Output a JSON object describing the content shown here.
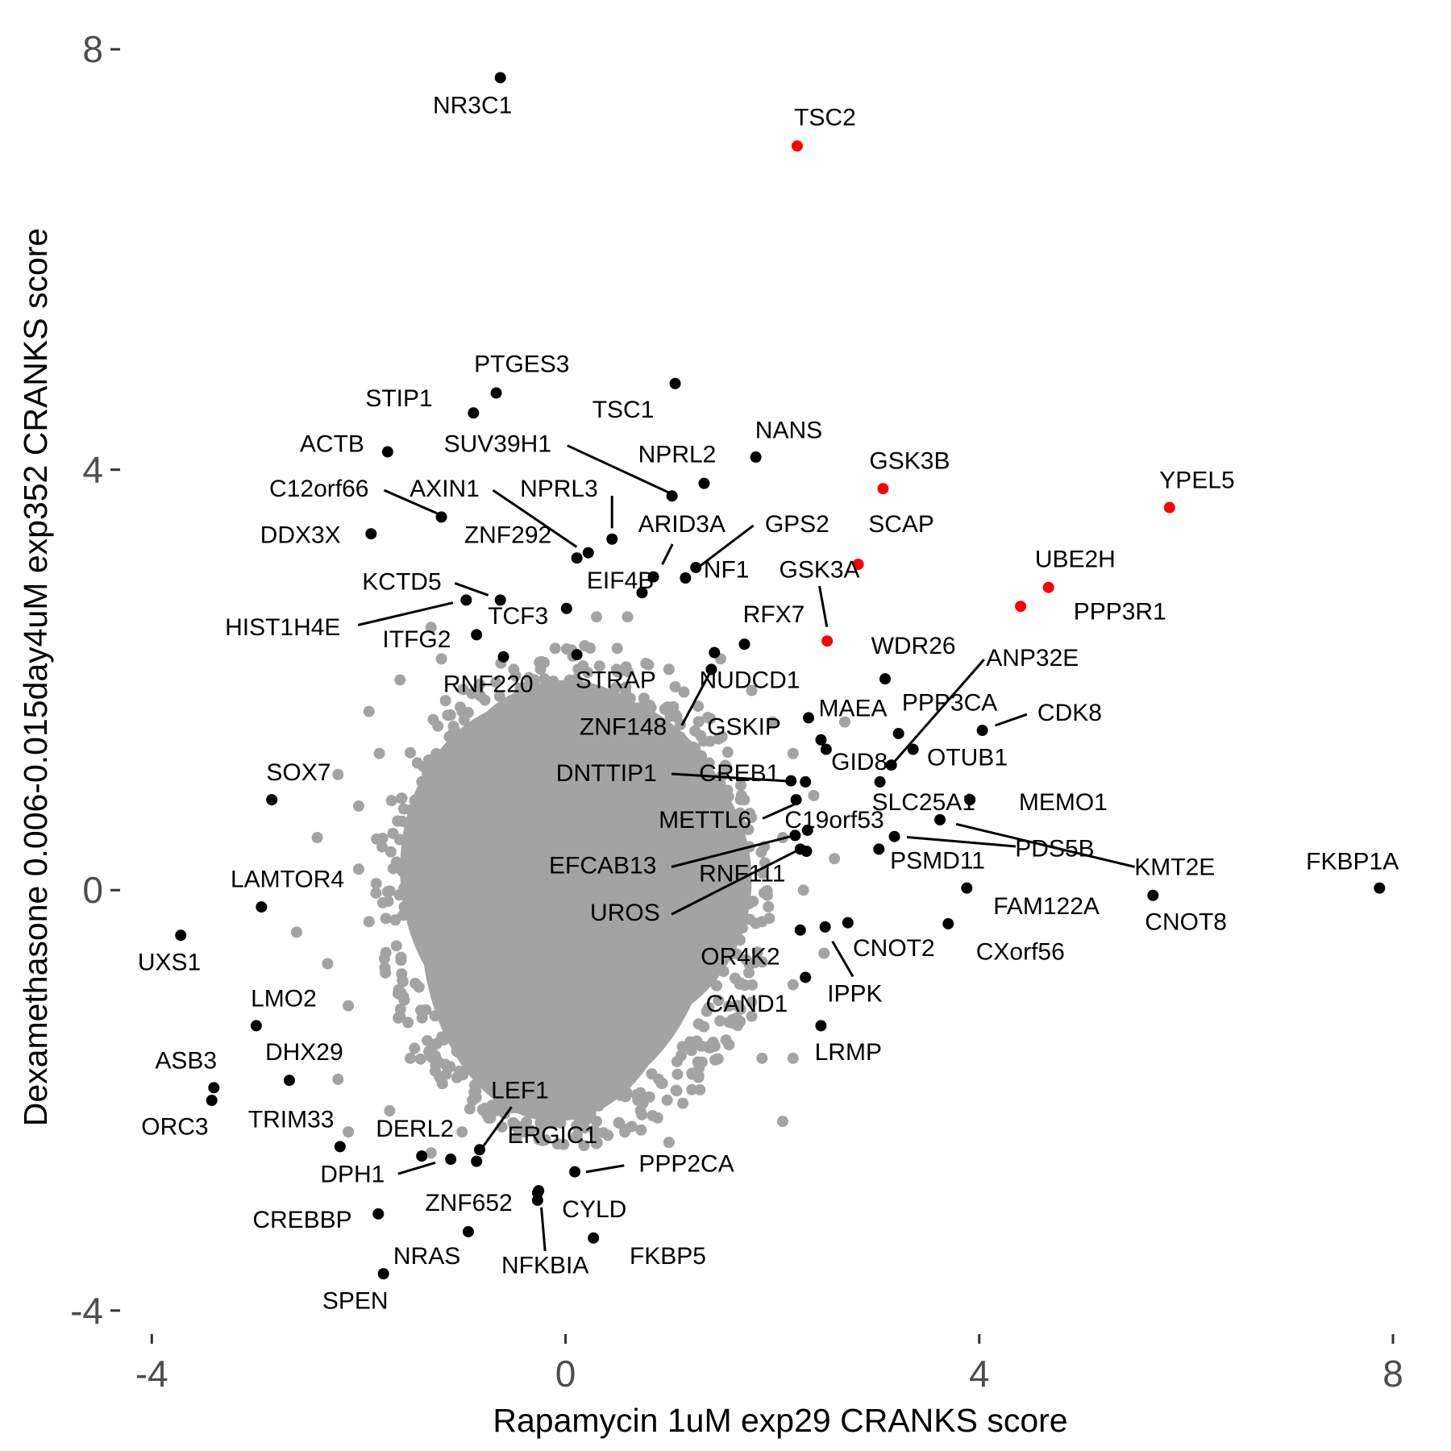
{
  "chart_data": {
    "type": "scatter",
    "xlabel": "Rapamycin 1uM exp29 CRANKS score",
    "ylabel": "Dexamethasone 0.006-0.015day4uM exp352 CRANKS score",
    "xlim": [
      -4.3,
      8.3
    ],
    "ylim": [
      -4.2,
      8.2
    ],
    "xticks": [
      -4,
      0,
      4,
      8
    ],
    "yticks": [
      -4,
      0,
      4,
      8
    ],
    "grid": false,
    "colors": {
      "highlight": "#ff0000",
      "labeled": "#000000",
      "background": "#a3a3a3"
    },
    "points": [
      {
        "label": "NR3C1",
        "x": -0.63,
        "y": 7.73,
        "highlight": false
      },
      {
        "label": "TSC2",
        "x": 2.24,
        "y": 7.08,
        "highlight": true
      },
      {
        "label": "PTGES3",
        "x": -0.67,
        "y": 4.73,
        "highlight": false
      },
      {
        "label": "STIP1",
        "x": -0.89,
        "y": 4.54,
        "highlight": false
      },
      {
        "label": "TSC1",
        "x": 1.06,
        "y": 4.82,
        "highlight": false
      },
      {
        "label": "ACTB",
        "x": -1.72,
        "y": 4.17,
        "highlight": false
      },
      {
        "label": "SUV39H1",
        "x": 1.03,
        "y": 3.75,
        "highlight": false
      },
      {
        "label": "NANS",
        "x": 1.84,
        "y": 4.12,
        "highlight": false
      },
      {
        "label": "NPRL2",
        "x": 1.34,
        "y": 3.87,
        "highlight": false
      },
      {
        "label": "GSK3B",
        "x": 3.07,
        "y": 3.82,
        "highlight": true
      },
      {
        "label": "YPEL5",
        "x": 5.84,
        "y": 3.64,
        "highlight": true
      },
      {
        "label": "C12orf66",
        "x": -1.2,
        "y": 3.55,
        "highlight": false
      },
      {
        "label": "AXIN1",
        "x": 0.11,
        "y": 3.16,
        "highlight": false
      },
      {
        "label": "NPRL3",
        "x": 0.45,
        "y": 3.34,
        "highlight": false
      },
      {
        "label": "DDX3X",
        "x": -1.88,
        "y": 3.39,
        "highlight": false
      },
      {
        "label": "ZNF292",
        "x": 0.22,
        "y": 3.21,
        "highlight": false
      },
      {
        "label": "ARID3A",
        "x": 0.85,
        "y": 2.98,
        "highlight": false
      },
      {
        "label": "GPS2",
        "x": 1.26,
        "y": 3.07,
        "highlight": false
      },
      {
        "label": "NF1",
        "x": 1.16,
        "y": 2.97,
        "highlight": false
      },
      {
        "label": "EIF4B",
        "x": 0.74,
        "y": 2.83,
        "highlight": false
      },
      {
        "label": "SCAP",
        "x": 2.83,
        "y": 3.1,
        "highlight": true
      },
      {
        "label": "GSK3A",
        "x": 2.53,
        "y": 2.37,
        "highlight": true
      },
      {
        "label": "UBE2H",
        "x": 4.67,
        "y": 2.88,
        "highlight": true
      },
      {
        "label": "PPP3R1",
        "x": 4.4,
        "y": 2.7,
        "highlight": true
      },
      {
        "label": "KCTD5",
        "x": -0.63,
        "y": 2.76,
        "highlight": false
      },
      {
        "label": "HIST1H4E",
        "x": -0.96,
        "y": 2.76,
        "highlight": false
      },
      {
        "label": "TCF3",
        "x": 0.01,
        "y": 2.68,
        "highlight": false
      },
      {
        "label": "ITFG2",
        "x": -0.86,
        "y": 2.43,
        "highlight": false
      },
      {
        "label": "RFX7",
        "x": 1.73,
        "y": 2.34,
        "highlight": false
      },
      {
        "label": "WDR26",
        "x": 3.09,
        "y": 2.01,
        "highlight": false
      },
      {
        "label": "ANP32E",
        "x": 3.15,
        "y": 1.19,
        "highlight": false
      },
      {
        "label": "CDK8",
        "x": 4.03,
        "y": 1.52,
        "highlight": false
      },
      {
        "label": "RNF220",
        "x": -0.6,
        "y": 2.22,
        "highlight": false
      },
      {
        "label": "STRAP",
        "x": 0.11,
        "y": 2.24,
        "highlight": false
      },
      {
        "label": "NUDCD1",
        "x": 1.44,
        "y": 2.26,
        "highlight": false
      },
      {
        "label": "ZNF148",
        "x": 1.41,
        "y": 2.1,
        "highlight": false
      },
      {
        "label": "MAEA",
        "x": 2.35,
        "y": 1.64,
        "highlight": false
      },
      {
        "label": "PPP3CA",
        "x": 3.22,
        "y": 1.49,
        "highlight": false
      },
      {
        "label": "GSKIP",
        "x": 2.47,
        "y": 1.43,
        "highlight": false
      },
      {
        "label": "GID8",
        "x": 2.52,
        "y": 1.34,
        "highlight": false
      },
      {
        "label": "OTUB1",
        "x": 3.36,
        "y": 1.34,
        "highlight": false
      },
      {
        "label": "DNTTIP1",
        "x": 2.18,
        "y": 1.04,
        "highlight": false
      },
      {
        "label": "CREB1",
        "x": 2.32,
        "y": 1.03,
        "highlight": false
      },
      {
        "label": "SLC25A1",
        "x": 3.04,
        "y": 1.03,
        "highlight": false
      },
      {
        "label": "MEMO1",
        "x": 3.91,
        "y": 0.86,
        "highlight": false
      },
      {
        "label": "METTL6",
        "x": 2.23,
        "y": 0.86,
        "highlight": false
      },
      {
        "label": "C19orf53",
        "x": 2.34,
        "y": 0.57,
        "highlight": false
      },
      {
        "label": "KMT2E",
        "x": 3.62,
        "y": 0.67,
        "highlight": false
      },
      {
        "label": "PDS5B",
        "x": 3.18,
        "y": 0.51,
        "highlight": false
      },
      {
        "label": "PSMD11",
        "x": 3.03,
        "y": 0.39,
        "highlight": false
      },
      {
        "label": "EFCAB13",
        "x": 2.22,
        "y": 0.52,
        "highlight": false
      },
      {
        "label": "RNF111",
        "x": 2.33,
        "y": 0.37,
        "highlight": false
      },
      {
        "label": "UROS",
        "x": 2.27,
        "y": 0.39,
        "highlight": false
      },
      {
        "label": "FKBP1A",
        "x": 7.87,
        "y": 0.02,
        "highlight": false
      },
      {
        "label": "CNOT8",
        "x": 5.68,
        "y": -0.05,
        "highlight": false
      },
      {
        "label": "FAM122A",
        "x": 3.88,
        "y": 0.02,
        "highlight": false
      },
      {
        "label": "CXorf56",
        "x": 3.7,
        "y": -0.32,
        "highlight": false
      },
      {
        "label": "CNOT2",
        "x": 2.73,
        "y": -0.31,
        "highlight": false
      },
      {
        "label": "IPPK",
        "x": 2.51,
        "y": -0.35,
        "highlight": false
      },
      {
        "label": "OR4K2",
        "x": 2.27,
        "y": -0.38,
        "highlight": false
      },
      {
        "label": "CAND1",
        "x": 2.32,
        "y": -0.83,
        "highlight": false
      },
      {
        "label": "LRMP",
        "x": 2.47,
        "y": -1.29,
        "highlight": false
      },
      {
        "label": "SOX7",
        "x": -2.84,
        "y": 0.86,
        "highlight": false
      },
      {
        "label": "LAMTOR4",
        "x": -2.94,
        "y": -0.16,
        "highlight": false
      },
      {
        "label": "UXS1",
        "x": -3.72,
        "y": -0.43,
        "highlight": false
      },
      {
        "label": "LMO2",
        "x": -2.99,
        "y": -1.29,
        "highlight": false
      },
      {
        "label": "DHX29",
        "x": -2.67,
        "y": -1.81,
        "highlight": false
      },
      {
        "label": "ASB3",
        "x": -3.4,
        "y": -1.88,
        "highlight": false
      },
      {
        "label": "ORC3",
        "x": -3.42,
        "y": -2.0,
        "highlight": false
      },
      {
        "label": "TRIM33",
        "x": -2.18,
        "y": -2.44,
        "highlight": false
      },
      {
        "label": "DERL2",
        "x": -1.11,
        "y": -2.56,
        "highlight": false
      },
      {
        "label": "LEF1",
        "x": -0.83,
        "y": -2.47,
        "highlight": false
      },
      {
        "label": "ERGIC1",
        "x": -0.86,
        "y": -2.58,
        "highlight": false
      },
      {
        "label": "DPH1",
        "x": -1.39,
        "y": -2.53,
        "highlight": false
      },
      {
        "label": "PPP2CA",
        "x": 0.09,
        "y": -2.68,
        "highlight": false
      },
      {
        "label": "CREBBP",
        "x": -1.81,
        "y": -3.08,
        "highlight": false
      },
      {
        "label": "ZNF652",
        "x": -0.27,
        "y": -2.88,
        "highlight": false
      },
      {
        "label": "CYLD",
        "x": -0.27,
        "y": -2.95,
        "highlight": false
      },
      {
        "label": "NFKBIA",
        "x": -0.26,
        "y": -2.86,
        "highlight": false
      },
      {
        "label": "NRAS",
        "x": -0.94,
        "y": -3.25,
        "highlight": false
      },
      {
        "label": "FKBP5",
        "x": 0.27,
        "y": -3.31,
        "highlight": false
      },
      {
        "label": "SPEN",
        "x": -1.76,
        "y": -3.65,
        "highlight": false
      }
    ],
    "background_points": [
      [
        -1.6,
        2.0
      ],
      [
        -1.9,
        1.7
      ],
      [
        -1.8,
        1.3
      ],
      [
        -2.2,
        1.1
      ],
      [
        -2.4,
        0.5
      ],
      [
        -2.6,
        -0.4
      ],
      [
        -2.3,
        -0.7
      ],
      [
        -2.1,
        -1.1
      ],
      [
        -2.2,
        -1.8
      ],
      [
        -2.1,
        -2.3
      ],
      [
        -1.7,
        -2.1
      ],
      [
        -1.5,
        -1.6
      ],
      [
        -1.3,
        -2.5
      ],
      [
        -1.0,
        -2.3
      ],
      [
        -0.9,
        -2.0
      ],
      [
        -0.6,
        -1.9
      ],
      [
        -0.1,
        -2.2
      ],
      [
        0.1,
        -2.1
      ],
      [
        0.3,
        -2.2
      ],
      [
        0.7,
        -2.0
      ],
      [
        1.0,
        -2.4
      ],
      [
        0.9,
        -1.8
      ],
      [
        1.4,
        -1.5
      ],
      [
        1.9,
        -1.6
      ],
      [
        2.2,
        -1.6
      ],
      [
        2.1,
        -2.2
      ],
      [
        1.8,
        -1.2
      ],
      [
        2.2,
        -0.9
      ],
      [
        2.5,
        -0.6
      ],
      [
        2.3,
        0.0
      ],
      [
        2.6,
        0.3
      ],
      [
        2.1,
        0.5
      ],
      [
        2.4,
        0.9
      ],
      [
        2.2,
        1.3
      ],
      [
        2.0,
        1.6
      ],
      [
        2.7,
        1.6
      ],
      [
        1.8,
        1.9
      ],
      [
        1.5,
        2.2
      ],
      [
        1.0,
        2.1
      ],
      [
        0.5,
        2.3
      ],
      [
        0.3,
        2.6
      ],
      [
        -0.1,
        2.3
      ],
      [
        -0.5,
        2.1
      ],
      [
        -1.2,
        2.2
      ],
      [
        -1.3,
        2.5
      ],
      [
        -0.3,
        2.0
      ],
      [
        0.6,
        2.6
      ],
      [
        -1.0,
        1.7
      ],
      [
        -2.0,
        0.2
      ],
      [
        -1.9,
        -0.3
      ],
      [
        -2.0,
        0.8
      ],
      [
        1.9,
        -0.3
      ],
      [
        1.7,
        0.9
      ],
      [
        -1.6,
        -1.2
      ],
      [
        1.3,
        -1.9
      ],
      [
        -0.4,
        -2.3
      ]
    ]
  }
}
